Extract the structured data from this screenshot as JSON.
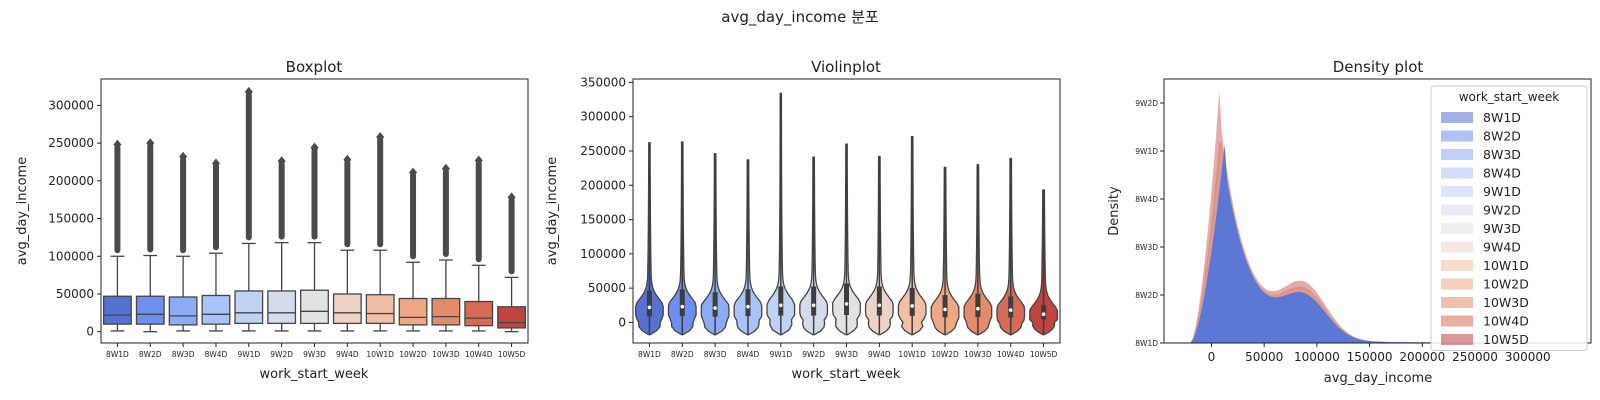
{
  "figure": {
    "title": "avg_day_income 분포"
  },
  "categories": [
    "8W1D",
    "8W2D",
    "8W3D",
    "8W4D",
    "9W1D",
    "9W2D",
    "9W3D",
    "9W4D",
    "10W1D",
    "10W2D",
    "10W3D",
    "10W4D",
    "10W5D"
  ],
  "palette": [
    "#5572d2",
    "#6c8ff0",
    "#8daaf5",
    "#a7c3f9",
    "#bfd2f6",
    "#d3dbec",
    "#e3e2e2",
    "#eed4c7",
    "#f2bfa6",
    "#f0a786",
    "#e48b6c",
    "#d56b55",
    "#c04440"
  ],
  "chart_data": [
    {
      "type": "box",
      "title": "Boxplot",
      "xlabel": "work_start_week",
      "ylabel": "avg_day_income",
      "yticks": [
        0,
        50000,
        100000,
        150000,
        200000,
        250000,
        300000
      ],
      "ylim": [
        -15000,
        335000
      ],
      "boxes": [
        {
          "q1": 10000,
          "median": 22000,
          "q3": 47000,
          "whisker_low": 1000,
          "whisker_high": 100000,
          "outlier_max": 248000
        },
        {
          "q1": 10000,
          "median": 23000,
          "q3": 47000,
          "whisker_low": 0,
          "whisker_high": 101000,
          "outlier_max": 250000
        },
        {
          "q1": 9000,
          "median": 21000,
          "q3": 46000,
          "whisker_low": 1000,
          "whisker_high": 100000,
          "outlier_max": 232000
        },
        {
          "q1": 10000,
          "median": 23000,
          "q3": 48000,
          "whisker_low": 1000,
          "whisker_high": 104000,
          "outlier_max": 223000
        },
        {
          "q1": 11000,
          "median": 25000,
          "q3": 54000,
          "whisker_low": 1000,
          "whisker_high": 117000,
          "outlier_max": 318000
        },
        {
          "q1": 11000,
          "median": 25000,
          "q3": 54000,
          "whisker_low": 1000,
          "whisker_high": 118000,
          "outlier_max": 226000
        },
        {
          "q1": 11000,
          "median": 27000,
          "q3": 55000,
          "whisker_low": 1000,
          "whisker_high": 118000,
          "outlier_max": 244000
        },
        {
          "q1": 11000,
          "median": 25000,
          "q3": 50000,
          "whisker_low": 1000,
          "whisker_high": 108000,
          "outlier_max": 228000
        },
        {
          "q1": 11000,
          "median": 24000,
          "q3": 49000,
          "whisker_low": 1000,
          "whisker_high": 108000,
          "outlier_max": 258000
        },
        {
          "q1": 9000,
          "median": 19000,
          "q3": 44000,
          "whisker_low": 1000,
          "whisker_high": 92000,
          "outlier_max": 211000
        },
        {
          "q1": 9000,
          "median": 20000,
          "q3": 44000,
          "whisker_low": 1000,
          "whisker_high": 95000,
          "outlier_max": 216000
        },
        {
          "q1": 8000,
          "median": 18000,
          "q3": 40000,
          "whisker_low": 1000,
          "whisker_high": 88000,
          "outlier_max": 227000
        },
        {
          "q1": 5000,
          "median": 12000,
          "q3": 33000,
          "whisker_low": 0,
          "whisker_high": 72000,
          "outlier_max": 178000
        }
      ]
    },
    {
      "type": "violin",
      "title": "Violinplot",
      "xlabel": "work_start_week",
      "ylabel": "avg_day_income",
      "yticks": [
        0,
        50000,
        100000,
        150000,
        200000,
        250000,
        300000,
        350000
      ],
      "ylim": [
        -30000,
        355000
      ],
      "violins": [
        {
          "max": 262000,
          "median": 22000
        },
        {
          "max": 263000,
          "median": 23000
        },
        {
          "max": 246000,
          "median": 21000
        },
        {
          "max": 237000,
          "median": 23000
        },
        {
          "max": 334000,
          "median": 25000
        },
        {
          "max": 241000,
          "median": 25000
        },
        {
          "max": 260000,
          "median": 27000
        },
        {
          "max": 242000,
          "median": 25000
        },
        {
          "max": 271000,
          "median": 24000
        },
        {
          "max": 226000,
          "median": 19000
        },
        {
          "max": 230000,
          "median": 20000
        },
        {
          "max": 239000,
          "median": 18000
        },
        {
          "max": 193000,
          "median": 12000
        }
      ]
    },
    {
      "type": "area",
      "title": "Density plot",
      "xlabel": "avg_day_income",
      "ylabel": "Density",
      "xticks": [
        0,
        50000,
        100000,
        150000,
        200000,
        250000,
        300000
      ],
      "xtick_labels": [
        "0",
        "50000",
        "100000",
        "150000",
        "200000",
        "250000",
        "300000"
      ],
      "xlim": [
        -45000,
        360000
      ],
      "ytick_labels": [
        "8W1D",
        "8W2D",
        "8W3D",
        "8W4D",
        "9W1D",
        "9W2D"
      ],
      "yticks": [
        0,
        1,
        2,
        3,
        4,
        5
      ],
      "ylim": [
        0,
        5.5
      ],
      "legend": {
        "title": "work_start_week",
        "loc": "upper right"
      },
      "peaks": [
        {
          "peak_x": 13000,
          "peak_y": 4.22
        },
        {
          "peak_x": 13000,
          "peak_y": 4.25
        },
        {
          "peak_x": 12000,
          "peak_y": 4.3
        },
        {
          "peak_x": 13000,
          "peak_y": 4.2
        },
        {
          "peak_x": 14000,
          "peak_y": 3.9
        },
        {
          "peak_x": 14000,
          "peak_y": 3.9
        },
        {
          "peak_x": 15000,
          "peak_y": 3.8
        },
        {
          "peak_x": 14000,
          "peak_y": 4.1
        },
        {
          "peak_x": 13000,
          "peak_y": 4.2
        },
        {
          "peak_x": 11000,
          "peak_y": 4.6
        },
        {
          "peak_x": 11000,
          "peak_y": 4.6
        },
        {
          "peak_x": 10000,
          "peak_y": 4.8
        },
        {
          "peak_x": 8000,
          "peak_y": 5.4
        }
      ]
    }
  ]
}
